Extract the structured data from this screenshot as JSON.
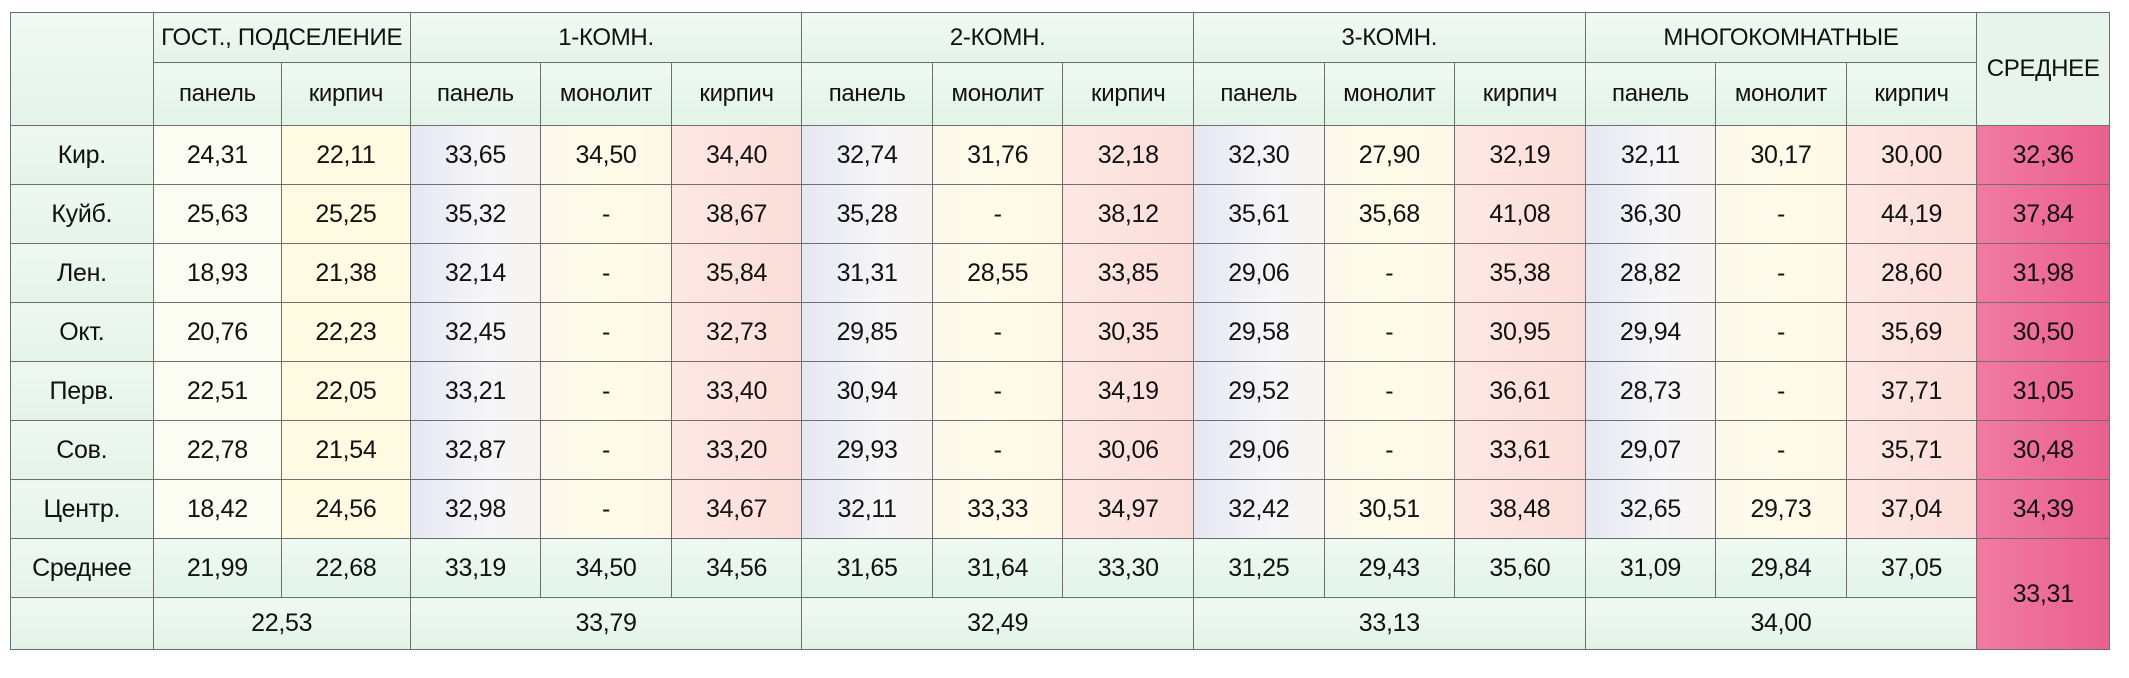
{
  "headers": {
    "groups": [
      "ГОСТ., ПОДСЕЛЕНИЕ",
      "1-КОМН.",
      "2-КОМН.",
      "3-КОМН.",
      "МНОГОКОМНАТНЫЕ"
    ],
    "avg": "СРЕДНЕЕ",
    "sub": {
      "panel": "панель",
      "mono": "монолит",
      "kirp": "кирпич"
    }
  },
  "rows": [
    {
      "label": "Кир.",
      "v": [
        "24,31",
        "22,11",
        "33,65",
        "34,50",
        "34,40",
        "32,74",
        "31,76",
        "32,18",
        "32,30",
        "27,90",
        "32,19",
        "32,11",
        "30,17",
        "30,00"
      ],
      "avg": "32,36"
    },
    {
      "label": "Куйб.",
      "v": [
        "25,63",
        "25,25",
        "35,32",
        "-",
        "38,67",
        "35,28",
        "-",
        "38,12",
        "35,61",
        "35,68",
        "41,08",
        "36,30",
        "-",
        "44,19"
      ],
      "avg": "37,84"
    },
    {
      "label": "Лен.",
      "v": [
        "18,93",
        "21,38",
        "32,14",
        "-",
        "35,84",
        "31,31",
        "28,55",
        "33,85",
        "29,06",
        "-",
        "35,38",
        "28,82",
        "-",
        "28,60"
      ],
      "avg": "31,98"
    },
    {
      "label": "Окт.",
      "v": [
        "20,76",
        "22,23",
        "32,45",
        "-",
        "32,73",
        "29,85",
        "-",
        "30,35",
        "29,58",
        "-",
        "30,95",
        "29,94",
        "-",
        "35,69"
      ],
      "avg": "30,50"
    },
    {
      "label": "Перв.",
      "v": [
        "22,51",
        "22,05",
        "33,21",
        "-",
        "33,40",
        "30,94",
        "-",
        "34,19",
        "29,52",
        "-",
        "36,61",
        "28,73",
        "-",
        "37,71"
      ],
      "avg": "31,05"
    },
    {
      "label": "Сов.",
      "v": [
        "22,78",
        "21,54",
        "32,87",
        "-",
        "33,20",
        "29,93",
        "-",
        "30,06",
        "29,06",
        "-",
        "33,61",
        "29,07",
        "-",
        "35,71"
      ],
      "avg": "30,48"
    },
    {
      "label": "Центр.",
      "v": [
        "18,42",
        "24,56",
        "32,98",
        "-",
        "34,67",
        "32,11",
        "33,33",
        "34,97",
        "32,42",
        "30,51",
        "38,48",
        "32,65",
        "29,73",
        "37,04"
      ],
      "avg": "34,39"
    },
    {
      "label": "Среднее",
      "v": [
        "21,99",
        "22,68",
        "33,19",
        "34,50",
        "34,56",
        "31,65",
        "31,64",
        "33,30",
        "31,25",
        "29,43",
        "35,60",
        "31,09",
        "29,84",
        "37,05"
      ],
      "avg": "33,31"
    }
  ],
  "totals": [
    "22,53",
    "33,79",
    "32,49",
    "33,13",
    "34,00"
  ]
}
